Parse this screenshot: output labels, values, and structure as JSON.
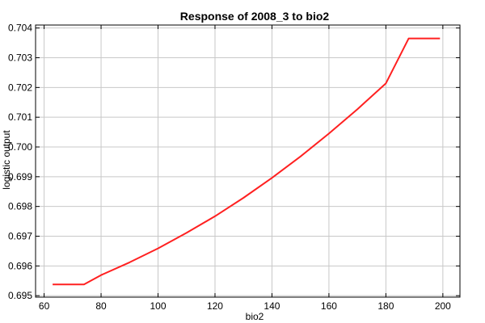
{
  "chart_data": {
    "type": "line",
    "title": "Response of 2008_3 to bio2",
    "xlabel": "bio2",
    "ylabel": "logistic output",
    "xlim": [
      57,
      206
    ],
    "ylim": [
      0.69495,
      0.7041
    ],
    "xticks": [
      60,
      80,
      100,
      120,
      140,
      160,
      180,
      200
    ],
    "yticks": [
      0.695,
      0.696,
      0.697,
      0.698,
      0.699,
      0.7,
      0.701,
      0.702,
      0.703,
      0.704
    ],
    "ytick_labels": [
      "0.695",
      "0.696",
      "0.697",
      "0.698",
      "0.699",
      "0.700",
      "0.701",
      "0.702",
      "0.703",
      "0.704"
    ],
    "grid": true,
    "series": [
      {
        "color": "#ff2020",
        "x": [
          63,
          74,
          80,
          90,
          100,
          110,
          120,
          130,
          140,
          150,
          160,
          170,
          180,
          188,
          199
        ],
        "y": [
          0.69538,
          0.69538,
          0.69569,
          0.69612,
          0.69659,
          0.69711,
          0.69767,
          0.69829,
          0.69896,
          0.69968,
          0.70045,
          0.70127,
          0.70214,
          0.70365,
          0.70365
        ]
      }
    ]
  }
}
